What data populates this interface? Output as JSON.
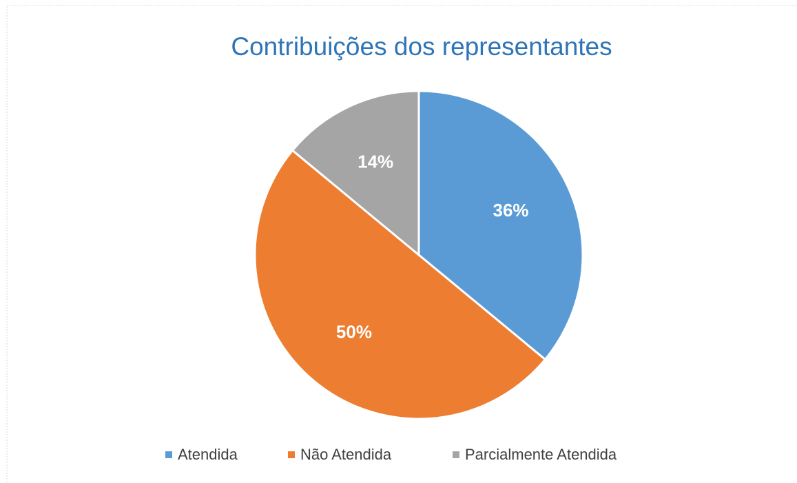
{
  "chart_data": {
    "type": "pie",
    "title": "Contribuições dos representantes",
    "categories": [
      "Atendida",
      "Não Atendida",
      "Parcialmente Atendida"
    ],
    "values": [
      36,
      50,
      14
    ],
    "value_labels": [
      "36%",
      "50%",
      "14%"
    ],
    "colors": [
      "#5b9bd5",
      "#ed7d31",
      "#a5a5a5"
    ],
    "legend": "bottom"
  }
}
